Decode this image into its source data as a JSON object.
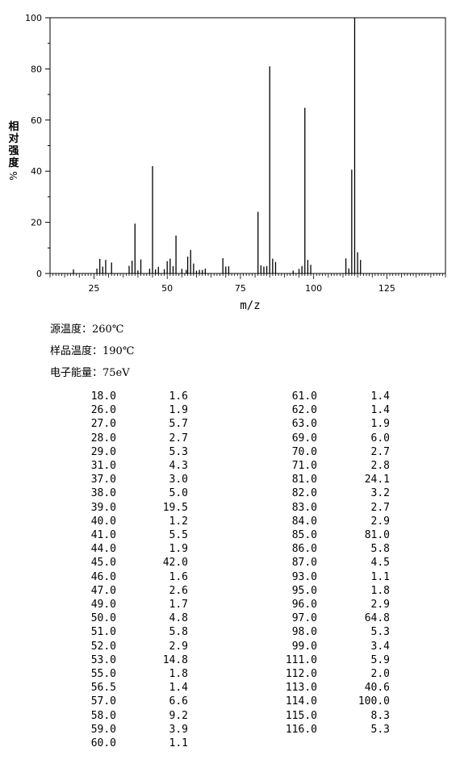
{
  "chart_data": {
    "type": "bar",
    "title": "",
    "xlabel": "m/z",
    "ylabel": "相对强度 %",
    "xlim": [
      10,
      145
    ],
    "ylim": [
      0,
      100
    ],
    "x_ticks": [
      25,
      50,
      75,
      100,
      125
    ],
    "y_ticks": [
      0,
      20,
      40,
      60,
      80,
      100
    ],
    "x_tick_labels": [
      "25",
      "50",
      "75",
      "100",
      "125"
    ],
    "y_tick_labels": [
      "0",
      "20",
      "40",
      "60",
      "80",
      "100"
    ],
    "grid": false,
    "peaks": [
      [
        18.0,
        1.6
      ],
      [
        26.0,
        1.9
      ],
      [
        27.0,
        5.7
      ],
      [
        28.0,
        2.7
      ],
      [
        29.0,
        5.3
      ],
      [
        31.0,
        4.3
      ],
      [
        37.0,
        3.0
      ],
      [
        38.0,
        5.0
      ],
      [
        39.0,
        19.5
      ],
      [
        40.0,
        1.2
      ],
      [
        41.0,
        5.5
      ],
      [
        44.0,
        1.9
      ],
      [
        45.0,
        42.0
      ],
      [
        46.0,
        1.6
      ],
      [
        47.0,
        2.6
      ],
      [
        49.0,
        1.7
      ],
      [
        50.0,
        4.8
      ],
      [
        51.0,
        5.8
      ],
      [
        52.0,
        2.9
      ],
      [
        53.0,
        14.8
      ],
      [
        55.0,
        1.8
      ],
      [
        56.5,
        1.4
      ],
      [
        57.0,
        6.6
      ],
      [
        58.0,
        9.2
      ],
      [
        59.0,
        3.9
      ],
      [
        60.0,
        1.1
      ],
      [
        61.0,
        1.4
      ],
      [
        62.0,
        1.4
      ],
      [
        63.0,
        1.9
      ],
      [
        69.0,
        6.0
      ],
      [
        70.0,
        2.7
      ],
      [
        71.0,
        2.8
      ],
      [
        81.0,
        24.1
      ],
      [
        82.0,
        3.2
      ],
      [
        83.0,
        2.7
      ],
      [
        84.0,
        2.9
      ],
      [
        85.0,
        81.0
      ],
      [
        86.0,
        5.8
      ],
      [
        87.0,
        4.5
      ],
      [
        93.0,
        1.1
      ],
      [
        95.0,
        1.8
      ],
      [
        96.0,
        2.9
      ],
      [
        97.0,
        64.8
      ],
      [
        98.0,
        5.3
      ],
      [
        99.0,
        3.4
      ],
      [
        111.0,
        5.9
      ],
      [
        112.0,
        2.0
      ],
      [
        113.0,
        40.6
      ],
      [
        114.0,
        100.0
      ],
      [
        115.0,
        8.3
      ],
      [
        116.0,
        5.3
      ]
    ]
  },
  "conditions": {
    "source_temp_label": "源温度：",
    "source_temp_value": "260℃",
    "sample_temp_label": "样品温度：",
    "sample_temp_value": "190℃",
    "electron_energy_label": "电子能量：",
    "electron_energy_value": "75eV"
  },
  "table": {
    "left": [
      [
        "18.0",
        "1.6"
      ],
      [
        "26.0",
        "1.9"
      ],
      [
        "27.0",
        "5.7"
      ],
      [
        "28.0",
        "2.7"
      ],
      [
        "29.0",
        "5.3"
      ],
      [
        "31.0",
        "4.3"
      ],
      [
        "37.0",
        "3.0"
      ],
      [
        "38.0",
        "5.0"
      ],
      [
        "39.0",
        "19.5"
      ],
      [
        "40.0",
        "1.2"
      ],
      [
        "41.0",
        "5.5"
      ],
      [
        "44.0",
        "1.9"
      ],
      [
        "45.0",
        "42.0"
      ],
      [
        "46.0",
        "1.6"
      ],
      [
        "47.0",
        "2.6"
      ],
      [
        "49.0",
        "1.7"
      ],
      [
        "50.0",
        "4.8"
      ],
      [
        "51.0",
        "5.8"
      ],
      [
        "52.0",
        "2.9"
      ],
      [
        "53.0",
        "14.8"
      ],
      [
        "55.0",
        "1.8"
      ],
      [
        "56.5",
        "1.4"
      ],
      [
        "57.0",
        "6.6"
      ],
      [
        "58.0",
        "9.2"
      ],
      [
        "59.0",
        "3.9"
      ],
      [
        "60.0",
        "1.1"
      ]
    ],
    "right": [
      [
        "61.0",
        "1.4"
      ],
      [
        "62.0",
        "1.4"
      ],
      [
        "63.0",
        "1.9"
      ],
      [
        "69.0",
        "6.0"
      ],
      [
        "70.0",
        "2.7"
      ],
      [
        "71.0",
        "2.8"
      ],
      [
        "81.0",
        "24.1"
      ],
      [
        "82.0",
        "3.2"
      ],
      [
        "83.0",
        "2.7"
      ],
      [
        "84.0",
        "2.9"
      ],
      [
        "85.0",
        "81.0"
      ],
      [
        "86.0",
        "5.8"
      ],
      [
        "87.0",
        "4.5"
      ],
      [
        "93.0",
        "1.1"
      ],
      [
        "95.0",
        "1.8"
      ],
      [
        "96.0",
        "2.9"
      ],
      [
        "97.0",
        "64.8"
      ],
      [
        "98.0",
        "5.3"
      ],
      [
        "99.0",
        "3.4"
      ],
      [
        "111.0",
        "5.9"
      ],
      [
        "112.0",
        "2.0"
      ],
      [
        "113.0",
        "40.6"
      ],
      [
        "114.0",
        "100.0"
      ],
      [
        "115.0",
        "8.3"
      ],
      [
        "116.0",
        "5.3"
      ]
    ]
  }
}
